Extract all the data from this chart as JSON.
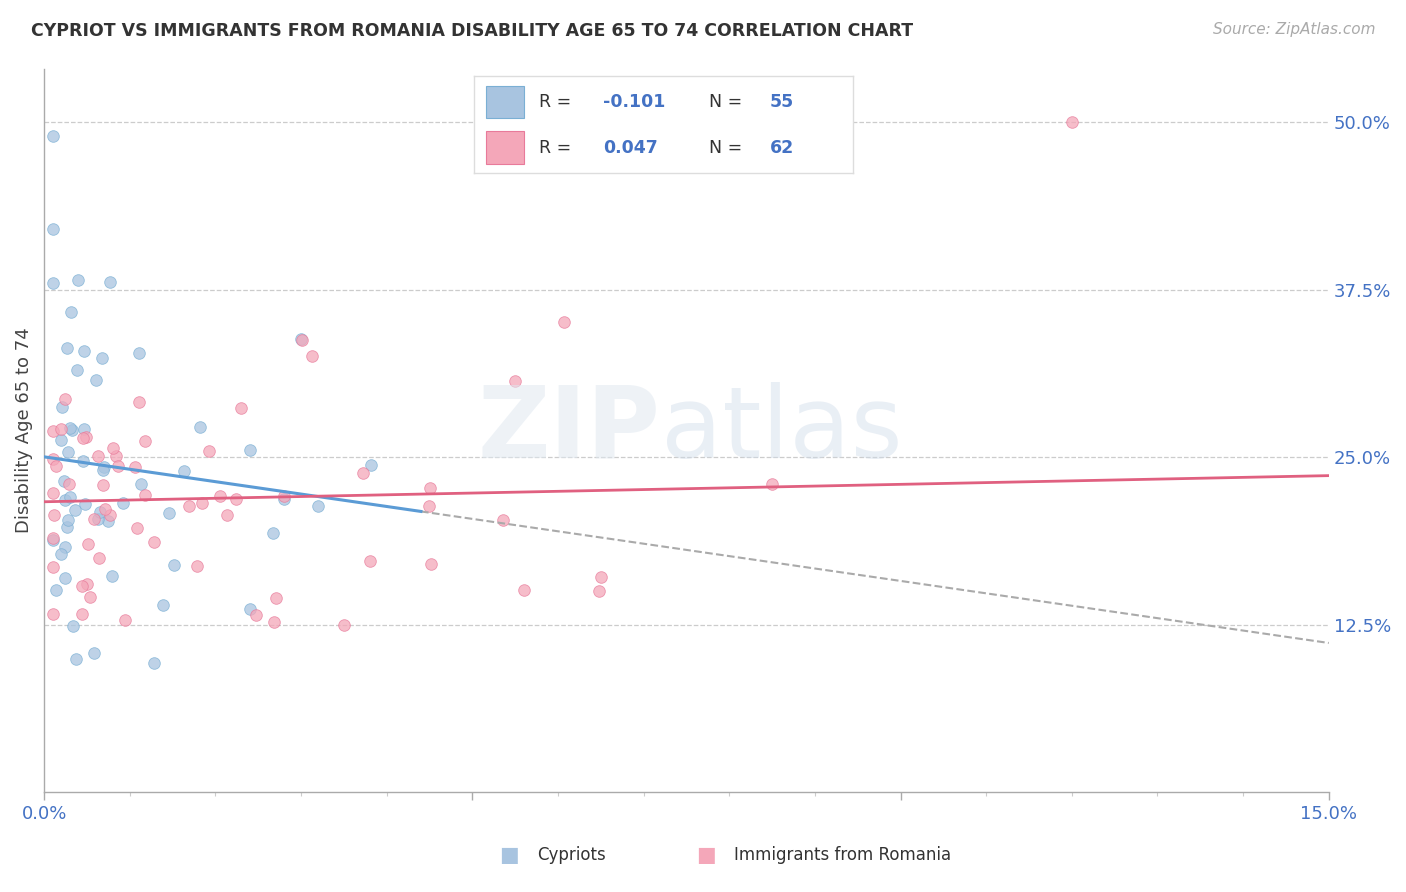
{
  "title": "CYPRIOT VS IMMIGRANTS FROM ROMANIA DISABILITY AGE 65 TO 74 CORRELATION CHART",
  "source": "Source: ZipAtlas.com",
  "ylabel": "Disability Age 65 to 74",
  "xlim": [
    0.0,
    0.15
  ],
  "ylim": [
    0.0,
    0.54
  ],
  "ytick_right_labels": [
    "12.5%",
    "25.0%",
    "37.5%",
    "50.0%"
  ],
  "ytick_right_values": [
    0.125,
    0.25,
    0.375,
    0.5
  ],
  "cypriot_color": "#a8c4e0",
  "cypriot_edge_color": "#7aafd4",
  "romania_color": "#f4a7b9",
  "romania_edge_color": "#e87a9a",
  "trend_blue": "#5b9bd5",
  "trend_pink": "#e06080",
  "cypriot_R": -0.101,
  "cypriot_N": 55,
  "romania_R": 0.047,
  "romania_N": 62,
  "bottom_label_1": "Cypriots",
  "bottom_label_2": "Immigrants from Romania"
}
